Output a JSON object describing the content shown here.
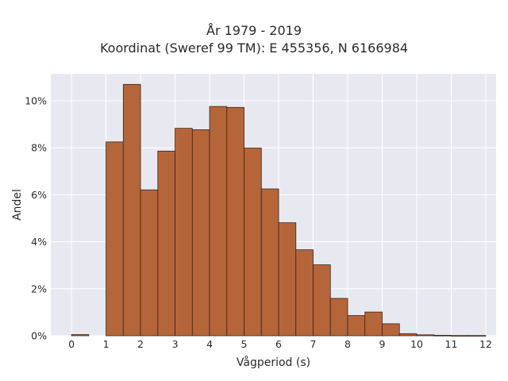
{
  "chart_data": {
    "type": "bar",
    "title_line1": "År 1979 - 2019",
    "title_line2": "Koordinat (Sweref 99 TM): E 455356, N 6166984",
    "xlabel": "Vågperiod (s)",
    "ylabel": "Andel",
    "xlim": [
      -0.6,
      12.3
    ],
    "ylim": [
      0,
      0.1115
    ],
    "bin_width": 0.5,
    "bins": [
      {
        "start": 0.0,
        "value": 0.0005
      },
      {
        "start": 0.5,
        "value": 0.0
      },
      {
        "start": 1.0,
        "value": 0.0825
      },
      {
        "start": 1.5,
        "value": 0.107
      },
      {
        "start": 2.0,
        "value": 0.0621
      },
      {
        "start": 2.5,
        "value": 0.0786
      },
      {
        "start": 3.0,
        "value": 0.0883
      },
      {
        "start": 3.5,
        "value": 0.0877
      },
      {
        "start": 4.0,
        "value": 0.0976
      },
      {
        "start": 4.5,
        "value": 0.0972
      },
      {
        "start": 5.0,
        "value": 0.0799
      },
      {
        "start": 5.5,
        "value": 0.0625
      },
      {
        "start": 6.0,
        "value": 0.0481
      },
      {
        "start": 6.5,
        "value": 0.0366
      },
      {
        "start": 7.0,
        "value": 0.0302
      },
      {
        "start": 7.5,
        "value": 0.0159
      },
      {
        "start": 8.0,
        "value": 0.0086
      },
      {
        "start": 8.5,
        "value": 0.0101
      },
      {
        "start": 9.0,
        "value": 0.0051
      },
      {
        "start": 9.5,
        "value": 0.0009
      },
      {
        "start": 10.0,
        "value": 0.0004
      },
      {
        "start": 10.5,
        "value": 0.0002
      },
      {
        "start": 11.0,
        "value": 0.0001
      },
      {
        "start": 11.5,
        "value": 0.0001
      }
    ],
    "x_ticks": [
      0,
      1,
      2,
      3,
      4,
      5,
      6,
      7,
      8,
      9,
      10,
      11,
      12
    ],
    "x_tick_labels": [
      "0",
      "1",
      "2",
      "3",
      "4",
      "5",
      "6",
      "7",
      "8",
      "9",
      "10",
      "11",
      "12"
    ],
    "y_ticks": [
      0,
      0.02,
      0.04,
      0.06,
      0.08,
      0.1
    ],
    "y_tick_labels": [
      "0%",
      "2%",
      "4%",
      "6%",
      "8%",
      "10%"
    ],
    "grid": true,
    "colors": {
      "bar_fill": "#b5653a",
      "bar_edge": "#3a2418",
      "plot_bg": "#e8e9f0",
      "grid": "#ffffff"
    }
  }
}
